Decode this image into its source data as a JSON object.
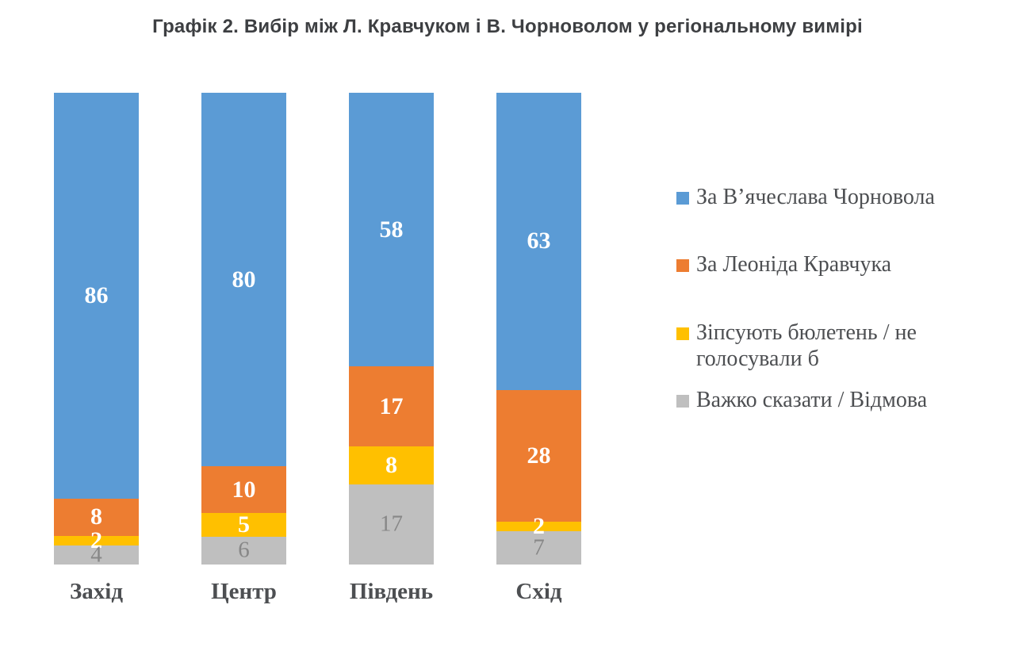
{
  "chart_data": {
    "type": "bar",
    "subtype": "stacked-100-percent-column",
    "title": "Графік 2. Вибір між Л. Кравчуком і В. Чорноволом у регіональному вимірі",
    "categories": [
      "Захід",
      "Центр",
      "Південь",
      "Схід"
    ],
    "series": [
      {
        "name": "За В’ячеслава Чорновола",
        "color": "#5B9BD5",
        "values": [
          86,
          80,
          58,
          63
        ],
        "label_color": "#FFFFFF",
        "label_bold": true
      },
      {
        "name": "За Леоніда Кравчука",
        "color": "#ED7D31",
        "values": [
          8,
          10,
          17,
          28
        ],
        "label_color": "#FFFFFF",
        "label_bold": true
      },
      {
        "name": "Зіпсують бюлетень / не голосували б",
        "color": "#FFC000",
        "values": [
          2,
          5,
          8,
          2
        ],
        "label_color": "#FFFFFF",
        "label_bold": true
      },
      {
        "name": "Важко сказати / Відмова",
        "color": "#BFBFBF",
        "values": [
          4,
          6,
          17,
          7
        ],
        "label_color": "#878787",
        "label_bold": false
      }
    ],
    "legend_position": "right",
    "axis_lines": "none",
    "grid": false,
    "value_axis_range": [
      0,
      100
    ],
    "data_labels": "inside-center"
  }
}
